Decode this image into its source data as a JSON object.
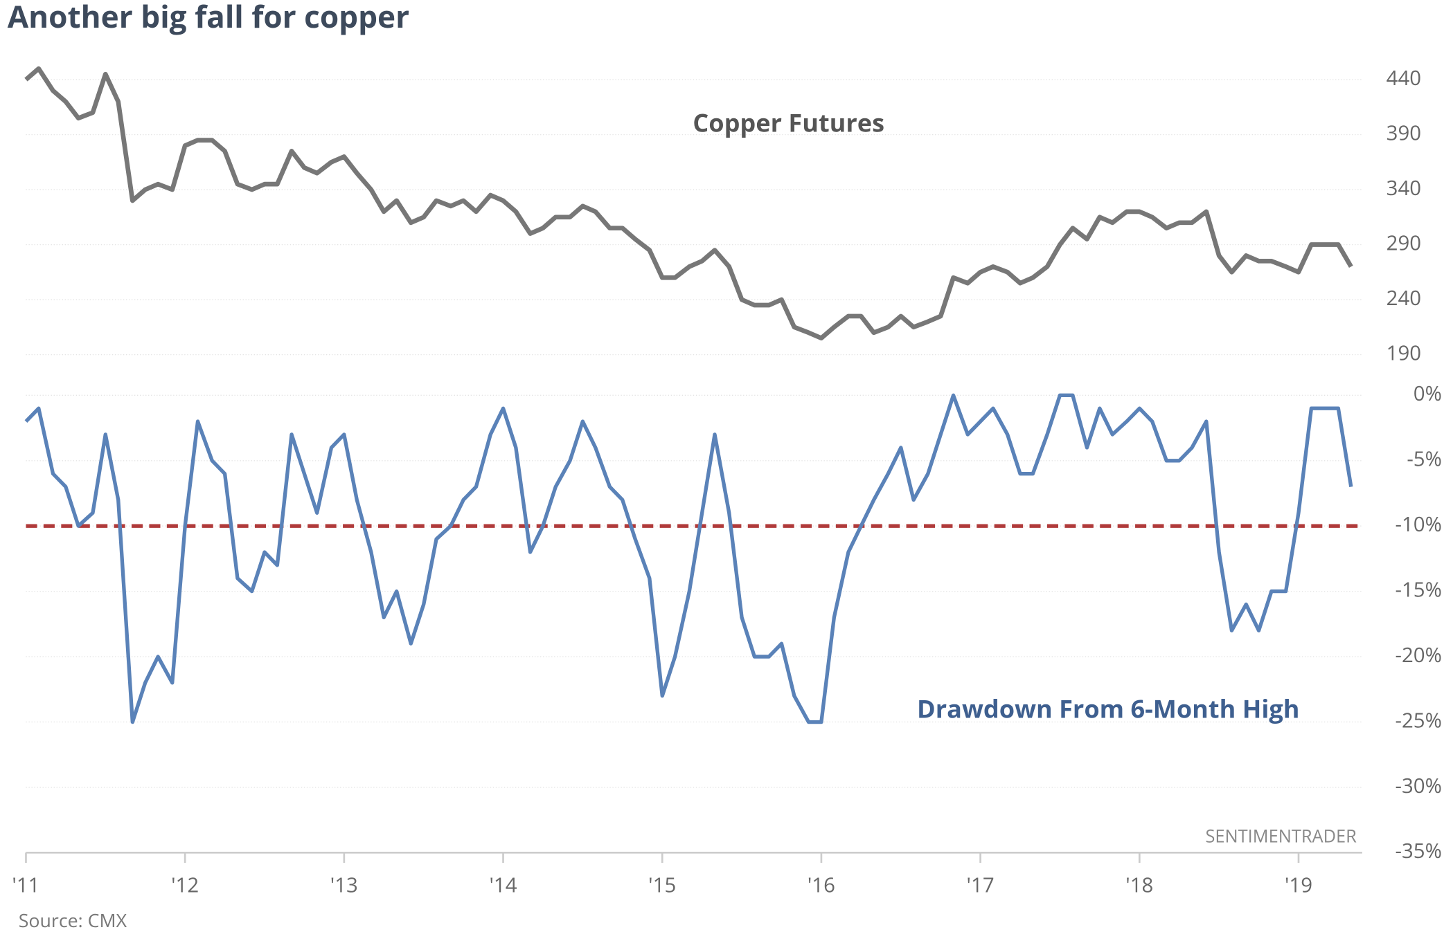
{
  "title": "Another big fall for copper",
  "source": "Source: CMX",
  "watermark": "SENTIMENTRADER",
  "xlim": [
    2011,
    2019.4
  ],
  "xticks": [
    {
      "value": 2011,
      "label": "'11"
    },
    {
      "value": 2012,
      "label": "'12"
    },
    {
      "value": 2013,
      "label": "'13"
    },
    {
      "value": 2014,
      "label": "'14"
    },
    {
      "value": 2015,
      "label": "'15"
    },
    {
      "value": 2016,
      "label": "'16"
    },
    {
      "value": 2017,
      "label": "'17"
    },
    {
      "value": 2018,
      "label": "'18"
    },
    {
      "value": 2019,
      "label": "'19"
    }
  ],
  "x": [
    2011.0,
    2011.08,
    2011.17,
    2011.25,
    2011.33,
    2011.42,
    2011.5,
    2011.58,
    2011.67,
    2011.75,
    2011.83,
    2011.92,
    2012.0,
    2012.08,
    2012.17,
    2012.25,
    2012.33,
    2012.42,
    2012.5,
    2012.58,
    2012.67,
    2012.75,
    2012.83,
    2012.92,
    2013.0,
    2013.08,
    2013.17,
    2013.25,
    2013.33,
    2013.42,
    2013.5,
    2013.58,
    2013.67,
    2013.75,
    2013.83,
    2013.92,
    2014.0,
    2014.08,
    2014.17,
    2014.25,
    2014.33,
    2014.42,
    2014.5,
    2014.58,
    2014.67,
    2014.75,
    2014.83,
    2014.92,
    2015.0,
    2015.08,
    2015.17,
    2015.25,
    2015.33,
    2015.42,
    2015.5,
    2015.58,
    2015.67,
    2015.75,
    2015.83,
    2015.92,
    2016.0,
    2016.08,
    2016.17,
    2016.25,
    2016.33,
    2016.42,
    2016.5,
    2016.58,
    2016.67,
    2016.75,
    2016.83,
    2016.92,
    2017.0,
    2017.08,
    2017.17,
    2017.25,
    2017.33,
    2017.42,
    2017.5,
    2017.58,
    2017.67,
    2017.75,
    2017.83,
    2017.92,
    2018.0,
    2018.08,
    2018.17,
    2018.25,
    2018.33,
    2018.42,
    2018.5,
    2018.58,
    2018.67,
    2018.75,
    2018.83,
    2018.92,
    2019.0,
    2019.08,
    2019.17,
    2019.25,
    2019.33
  ],
  "chart_data": [
    {
      "type": "line",
      "annotation": "Copper Futures",
      "series": [
        {
          "name": "Copper Futures",
          "color": "#777777",
          "values": [
            440,
            450,
            430,
            420,
            405,
            410,
            445,
            420,
            330,
            340,
            345,
            340,
            380,
            385,
            385,
            375,
            345,
            340,
            345,
            345,
            375,
            360,
            355,
            365,
            370,
            355,
            340,
            320,
            330,
            310,
            315,
            330,
            325,
            330,
            320,
            335,
            330,
            320,
            300,
            305,
            315,
            315,
            325,
            320,
            305,
            305,
            295,
            285,
            260,
            260,
            270,
            275,
            285,
            270,
            240,
            235,
            235,
            240,
            215,
            210,
            205,
            215,
            225,
            225,
            210,
            215,
            225,
            215,
            220,
            225,
            260,
            255,
            265,
            270,
            265,
            255,
            260,
            270,
            290,
            305,
            295,
            315,
            310,
            320,
            320,
            315,
            305,
            310,
            310,
            320,
            280,
            265,
            280,
            275,
            275,
            270,
            265,
            290,
            290,
            290,
            270
          ]
        }
      ],
      "ylim": [
        170,
        465
      ],
      "yticks": [
        190,
        240,
        290,
        340,
        390,
        440
      ],
      "grid": true
    },
    {
      "type": "line",
      "annotation": "Drawdown From 6-Month High",
      "series": [
        {
          "name": "Drawdown From 6-Month High",
          "color": "#5a82b8",
          "values": [
            -2,
            -1,
            -6,
            -7,
            -10,
            -9,
            -3,
            -8,
            -25,
            -22,
            -20,
            -22,
            -10,
            -2,
            -5,
            -6,
            -14,
            -15,
            -12,
            -13,
            -3,
            -6,
            -9,
            -4,
            -3,
            -8,
            -12,
            -17,
            -15,
            -19,
            -16,
            -11,
            -10,
            -8,
            -7,
            -3,
            -1,
            -4,
            -12,
            -10,
            -7,
            -5,
            -2,
            -4,
            -7,
            -8,
            -11,
            -14,
            -23,
            -20,
            -15,
            -9,
            -3,
            -9,
            -17,
            -20,
            -20,
            -19,
            -23,
            -25,
            -25,
            -17,
            -12,
            -10,
            -8,
            -6,
            -4,
            -8,
            -6,
            -3,
            0,
            -3,
            -2,
            -1,
            -3,
            -6,
            -6,
            -3,
            0,
            0,
            -4,
            -1,
            -3,
            -2,
            -1,
            -2,
            -5,
            -5,
            -4,
            -2,
            -12,
            -18,
            -16,
            -18,
            -15,
            -15,
            -9,
            -1,
            -1,
            -1,
            -7
          ]
        }
      ],
      "ylim": [
        -35,
        0
      ],
      "yticks": [
        {
          "value": -35,
          "label": "-35%"
        },
        {
          "value": -30,
          "label": "-30%"
        },
        {
          "value": -25,
          "label": "-25%"
        },
        {
          "value": -20,
          "label": "-20%"
        },
        {
          "value": -15,
          "label": "-15%"
        },
        {
          "value": -10,
          "label": "-10%"
        },
        {
          "value": -5,
          "label": "-5%"
        },
        {
          "value": 0,
          "label": "0%"
        }
      ],
      "reference_line": {
        "value": -10,
        "color": "#b03a3a"
      },
      "grid": true
    }
  ]
}
